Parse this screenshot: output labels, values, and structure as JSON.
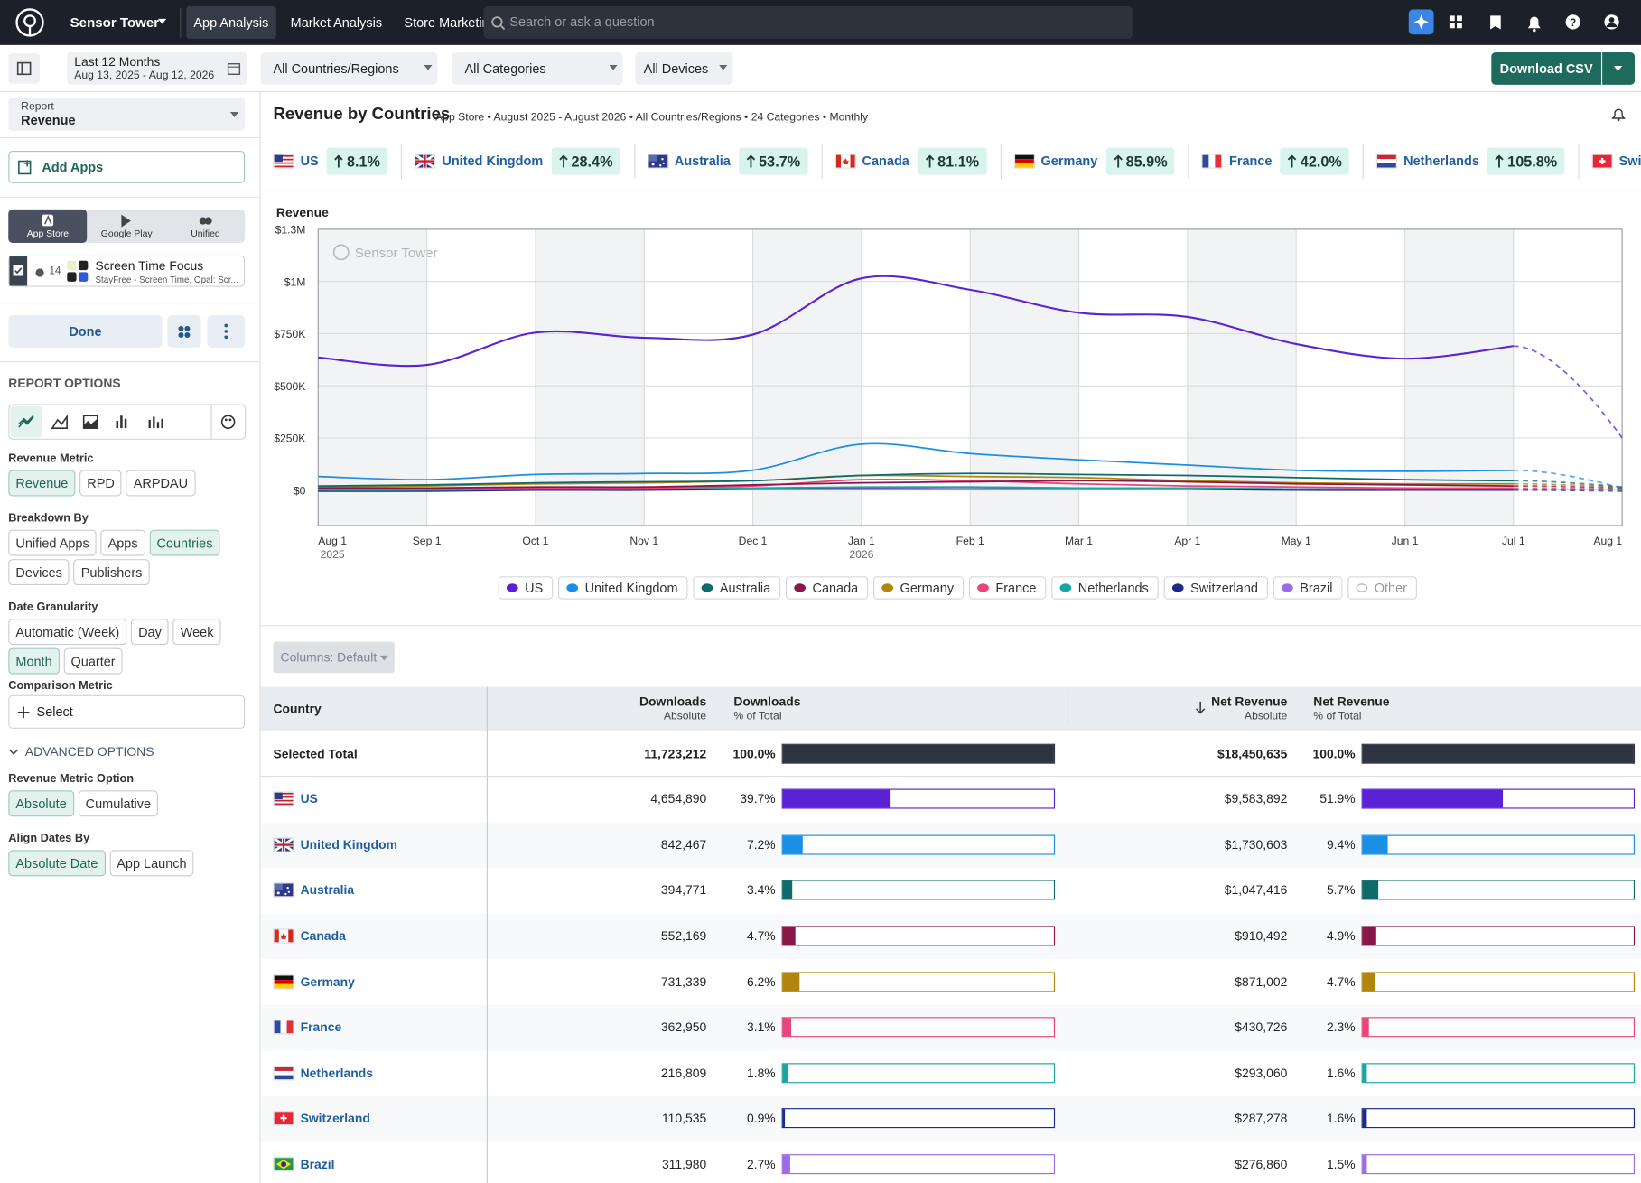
{
  "topbar": {
    "brand": "Sensor Tower",
    "nav": [
      "App Analysis",
      "Market Analysis",
      "Store Marketing"
    ],
    "search_placeholder": "Search or ask a question"
  },
  "filters": {
    "date_range": "Last 12 Months",
    "date_sub": "Aug 13, 2025 - Aug 12, 2026",
    "countries": "All Countries/Regions",
    "categories": "All Categories",
    "devices": "All Devices",
    "download": "Download CSV"
  },
  "sidebar": {
    "report_label": "Report",
    "report_value": "Revenue",
    "add_apps": "Add Apps",
    "stores": [
      "App Store",
      "Google Play",
      "Unified"
    ],
    "app_count": "14",
    "app_name": "Screen Time Focus",
    "app_sub": "StayFree - Screen Time, Opal: Scr...",
    "done": "Done",
    "report_options": "REPORT OPTIONS",
    "groups": [
      {
        "label": "Revenue Metric",
        "options": [
          "Revenue",
          "RPD",
          "ARPDAU"
        ],
        "selected": [
          0
        ]
      },
      {
        "label": "Breakdown By",
        "options": [
          "Unified Apps",
          "Apps",
          "Countries",
          "Devices",
          "Publishers"
        ],
        "selected": [
          2
        ]
      },
      {
        "label": "Date Granularity",
        "options": [
          "Automatic (Week)",
          "Day",
          "Week",
          "Month",
          "Quarter"
        ],
        "selected": [
          3
        ]
      }
    ],
    "comparison_label": "Comparison Metric",
    "comparison_select": "Select",
    "advanced": "ADVANCED OPTIONS",
    "advanced_groups": [
      {
        "label": "Revenue Metric Option",
        "options": [
          "Absolute",
          "Cumulative"
        ],
        "selected": [
          0
        ]
      },
      {
        "label": "Align Dates By",
        "options": [
          "Absolute Date",
          "App Launch"
        ],
        "selected": [
          0
        ]
      }
    ]
  },
  "header": {
    "title": "Revenue by Countries",
    "subtitle": "App Store • August 2025 - August 2026 • All Countries/Regions • 24 Categories • Monthly"
  },
  "summary": [
    {
      "country": "US",
      "change": "8.1%"
    },
    {
      "country": "United Kingdom",
      "change": "28.4%"
    },
    {
      "country": "Australia",
      "change": "53.7%"
    },
    {
      "country": "Canada",
      "change": "81.1%"
    },
    {
      "country": "Germany",
      "change": "85.9%"
    },
    {
      "country": "France",
      "change": "42.0%"
    },
    {
      "country": "Netherlands",
      "change": "105.8%"
    },
    {
      "country": "Switzerland"
    }
  ],
  "chart_data": {
    "type": "line",
    "y_title": "Revenue",
    "watermark": "Sensor Tower",
    "smooth": true,
    "last_segment_dashed": true,
    "grid": true,
    "categories": [
      "Aug 1",
      "Sep 1",
      "Oct 1",
      "Nov 1",
      "Dec 1",
      "Jan 1",
      "Feb 1",
      "Mar 1",
      "Apr 1",
      "May 1",
      "Jun 1",
      "Jul 1",
      "Aug 1"
    ],
    "year_labels": [
      "2025",
      null,
      null,
      null,
      null,
      "2026",
      null,
      null,
      null,
      null,
      null,
      null,
      null
    ],
    "ylim": [
      -170000,
      1250000
    ],
    "yticks": [
      {
        "value": 0,
        "label": "$0"
      },
      {
        "value": 250000,
        "label": "$250K"
      },
      {
        "value": 500000,
        "label": "$500K"
      },
      {
        "value": 750000,
        "label": "$750K"
      },
      {
        "value": 1000000,
        "label": "$1M"
      },
      {
        "value": 1250000,
        "label": "$1.3M"
      }
    ],
    "series": [
      {
        "name": "US",
        "color": "#5a22d4",
        "values": [
          635000,
          600000,
          755000,
          730000,
          745000,
          1015000,
          960000,
          850000,
          830000,
          700000,
          630000,
          690000,
          250000
        ]
      },
      {
        "name": "United Kingdom",
        "color": "#1a8fe3",
        "values": [
          65000,
          50000,
          75000,
          80000,
          95000,
          220000,
          175000,
          145000,
          120000,
          95000,
          90000,
          95000,
          10000
        ]
      },
      {
        "name": "Australia",
        "color": "#0f6b6b",
        "values": [
          20000,
          25000,
          35000,
          40000,
          45000,
          70000,
          80000,
          75000,
          70000,
          60000,
          50000,
          45000,
          15000
        ]
      },
      {
        "name": "Canada",
        "color": "#8a1748",
        "values": [
          10000,
          10000,
          15000,
          15000,
          25000,
          35000,
          40000,
          45000,
          40000,
          30000,
          25000,
          20000,
          10000
        ]
      },
      {
        "name": "Germany",
        "color": "#b2860c",
        "values": [
          15000,
          20000,
          30000,
          35000,
          45000,
          70000,
          65000,
          60000,
          45000,
          35000,
          30000,
          30000,
          15000
        ]
      },
      {
        "name": "France",
        "color": "#e8457a",
        "values": [
          5000,
          5000,
          10000,
          10000,
          20000,
          50000,
          45000,
          30000,
          20000,
          15000,
          10000,
          10000,
          5000
        ]
      },
      {
        "name": "Netherlands",
        "color": "#1aa5a5",
        "values": [
          0,
          0,
          5000,
          5000,
          10000,
          15000,
          15000,
          10000,
          10000,
          5000,
          5000,
          5000,
          0
        ]
      },
      {
        "name": "Switzerland",
        "color": "#1b2a8c",
        "values": [
          -5000,
          -5000,
          0,
          0,
          5000,
          5000,
          5000,
          5000,
          5000,
          0,
          0,
          0,
          -5000
        ]
      },
      {
        "name": "Brazil",
        "color": "#9b6be8",
        "values": [
          0,
          0,
          5000,
          5000,
          5000,
          10000,
          15000,
          10000,
          10000,
          5000,
          5000,
          5000,
          0
        ]
      },
      {
        "name": "Other",
        "color": "#b5b5b5",
        "hidden": true
      }
    ]
  },
  "table": {
    "columns_button": "Columns: Default",
    "headers": [
      {
        "title": "Country"
      },
      {
        "title": "Downloads",
        "sub": "Absolute"
      },
      {
        "title": "Downloads",
        "sub": "% of Total"
      },
      {
        "title": "Net Revenue",
        "sub": "Absolute"
      },
      {
        "title": "Net Revenue",
        "sub": "% of Total"
      }
    ],
    "rows": [
      [
        "Selected Total",
        "11,723,212",
        "100.0%",
        "$18,450,635",
        "100.0%"
      ],
      [
        "US",
        "4,654,890",
        "39.7%",
        "$9,583,892",
        "51.9%"
      ],
      [
        "United Kingdom",
        "842,467",
        "7.2%",
        "$1,730,603",
        "9.4%"
      ],
      [
        "Australia",
        "394,771",
        "3.4%",
        "$1,047,416",
        "5.7%"
      ],
      [
        "Canada",
        "552,169",
        "4.7%",
        "$910,492",
        "4.9%"
      ],
      [
        "Germany",
        "731,339",
        "6.2%",
        "$871,002",
        "4.7%"
      ],
      [
        "France",
        "362,950",
        "3.1%",
        "$430,726",
        "2.3%"
      ],
      [
        "Netherlands",
        "216,809",
        "1.8%",
        "$293,060",
        "1.6%"
      ],
      [
        "Switzerland",
        "110,535",
        "0.9%",
        "$287,278",
        "1.6%"
      ],
      [
        "Brazil",
        "311,980",
        "2.7%",
        "$276,860",
        "1.5%"
      ]
    ]
  }
}
